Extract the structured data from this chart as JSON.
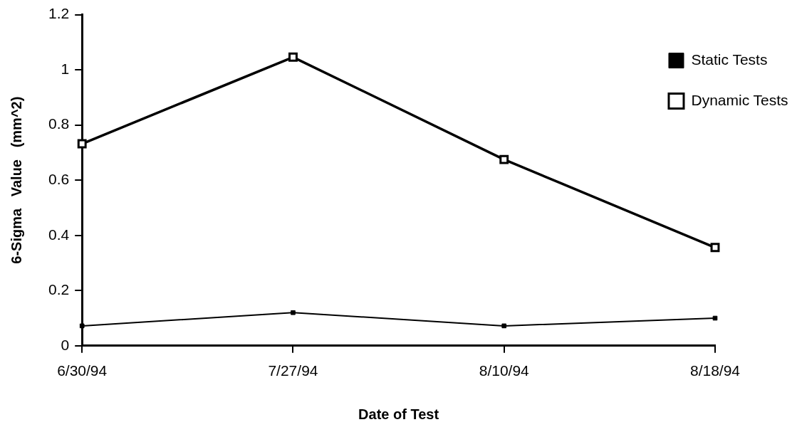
{
  "chart_data": {
    "type": "line",
    "xlabel": "Date of Test",
    "ylabel": "6-Sigma   Value   (mm^2)",
    "categories": [
      "6/30/94",
      "7/27/94",
      "8/10/94",
      "8/18/94"
    ],
    "series": [
      {
        "name": "Static Tests",
        "color": "#000000",
        "values": [
          0.072,
          0.12,
          0.072,
          0.1
        ]
      },
      {
        "name": "Dynamic Tests",
        "color": "#000000",
        "values": [
          0.732,
          1.046,
          0.675,
          0.356
        ]
      }
    ],
    "ylim": [
      0,
      1.2
    ],
    "yticks": [
      0,
      0.2,
      0.4,
      0.6,
      0.8,
      1,
      1.2
    ],
    "grid": false,
    "legend": "top right",
    "marker": "square",
    "line_style": "solid"
  }
}
